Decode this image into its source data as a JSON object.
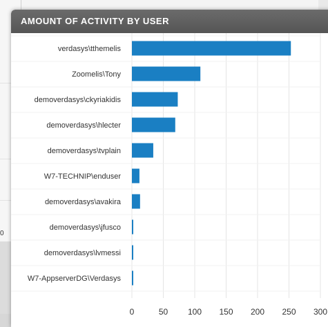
{
  "panel": {
    "title": "AMOUNT OF ACTIVITY BY USER"
  },
  "background": {
    "left_label": "0"
  },
  "chart_data": {
    "type": "bar",
    "orientation": "horizontal",
    "categories": [
      "verdasys\\tthemelis",
      "Zoomelis\\Tony",
      "demoverdasys\\ckyriakidis",
      "demoverdasys\\hlecter",
      "demoverdasys\\tvplain",
      "W7-TECHNIP\\enduser",
      "demoverdasys\\avakira",
      "demoverdasys\\jfusco",
      "demoverdasys\\lvmessi",
      "W7-AppserverDG\\Verdasys"
    ],
    "values": [
      253,
      109,
      73,
      69,
      34,
      12,
      13,
      2,
      1,
      1
    ],
    "xticks": [
      0,
      50,
      100,
      150,
      200,
      250,
      300
    ],
    "xlim": [
      0,
      300
    ],
    "grid": true,
    "bar_color": "#1a7fc3"
  }
}
